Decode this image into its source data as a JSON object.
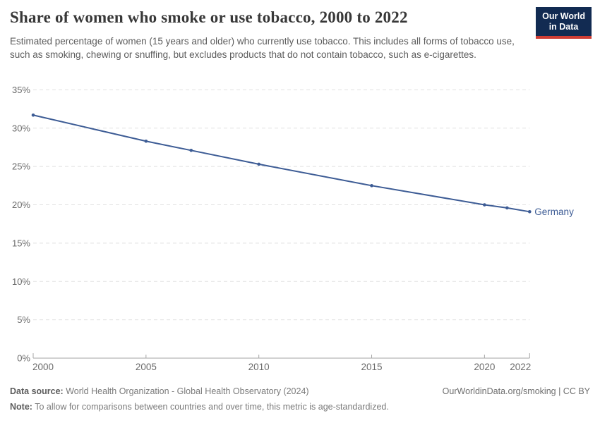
{
  "logo": {
    "line1": "Our World",
    "line2": "in Data",
    "bg_color": "#122b52",
    "stripe_color": "#cf3d34"
  },
  "chart_data": {
    "type": "line",
    "title": "Share of women who smoke or use tobacco, 2000 to 2022",
    "subtitle": "Estimated percentage of women (15 years and older) who currently use tobacco. This includes all forms of tobacco use, such as smoking, chewing or snuffing, but excludes products that do not contain tobacco, such as e-cigarettes.",
    "series": [
      {
        "name": "Germany",
        "color": "#3d5c95",
        "x": [
          2000,
          2005,
          2007,
          2010,
          2015,
          2020,
          2021,
          2022
        ],
        "values": [
          31.7,
          28.3,
          27.1,
          25.3,
          22.5,
          20.0,
          19.6,
          19.1
        ]
      }
    ],
    "xlim": [
      2000,
      2022
    ],
    "ylim": [
      0,
      35
    ],
    "xticks": [
      2000,
      2005,
      2010,
      2015,
      2020,
      2022
    ],
    "yticks": [
      0,
      5,
      10,
      15,
      20,
      25,
      30,
      35
    ],
    "ytick_suffix": "%",
    "grid": "horizontal-dashed",
    "legend_position": "end-of-line",
    "axis_color": "#a5a5a5",
    "grid_color": "#e0e0e0",
    "tick_label_color": "#6b6b6b"
  },
  "footer": {
    "data_source_label": "Data source:",
    "data_source_text": " World Health Organization - Global Health Observatory (2024)",
    "note_label": "Note:",
    "note_text": " To allow for comparisons between countries and over time, this metric is age-standardized.",
    "link": "OurWorldinData.org/smoking | CC BY"
  }
}
